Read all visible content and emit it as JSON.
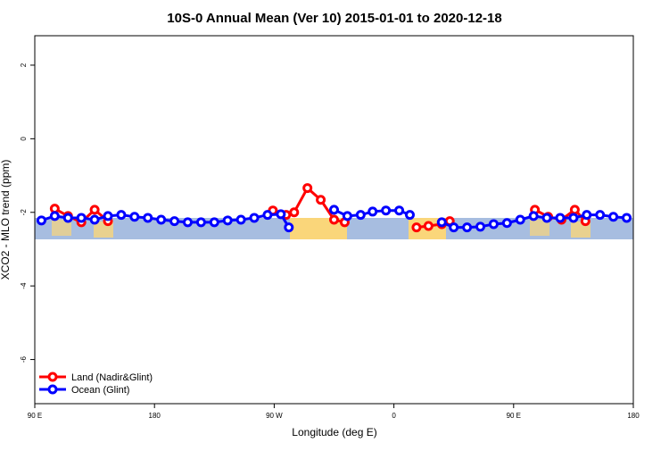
{
  "chart_data": {
    "type": "line",
    "title": "10S-0 Annual Mean (Ver 10)   2015-01-01 to 2020-12-18",
    "x_label": "Longitude (deg E)",
    "y_label": "XCO2 - MLO trend (ppm)",
    "xlim": [
      90,
      540
    ],
    "xticks": [
      {
        "value": 90,
        "label": "90 E"
      },
      {
        "value": 180,
        "label": "180"
      },
      {
        "value": 270,
        "label": "90 W"
      },
      {
        "value": 360,
        "label": "0"
      },
      {
        "value": 450,
        "label": "90 E"
      },
      {
        "value": 540,
        "label": "180"
      }
    ],
    "ylim": [
      -7.2,
      2.8
    ],
    "yticks": [
      -6,
      -4,
      -2,
      0,
      2
    ],
    "legend": "bottom-left",
    "series": [
      {
        "name": "Land (Nadir&Glint)",
        "color": "#ff0000",
        "x": [
          105,
          115,
          125,
          135,
          145,
          null,
          269,
          279,
          285,
          295,
          305,
          315,
          323,
          null,
          377,
          386,
          396,
          402,
          null,
          466,
          476,
          486,
          496,
          504
        ],
        "values": [
          -1.9,
          -2.1,
          -2.27,
          -1.93,
          -2.24,
          null,
          -1.95,
          -2.07,
          -2.0,
          -1.34,
          -1.66,
          -2.2,
          -2.27,
          null,
          -2.41,
          -2.37,
          -2.32,
          -2.24,
          null,
          -1.93,
          -2.12,
          -2.2,
          -1.93,
          -2.24
        ]
      },
      {
        "name": "Ocean (Glint)",
        "color": "#0000ff",
        "x": [
          95,
          105,
          115,
          125,
          135,
          145,
          155,
          165,
          175,
          185,
          195,
          205,
          215,
          225,
          235,
          245,
          255,
          265,
          275,
          281,
          null,
          315,
          325,
          335,
          344,
          354,
          364,
          372,
          null,
          396,
          405,
          415,
          425,
          435,
          445,
          455,
          465,
          475,
          485,
          495,
          505,
          515,
          525,
          535
        ],
        "values": [
          -2.22,
          -2.1,
          -2.15,
          -2.15,
          -2.2,
          -2.1,
          -2.07,
          -2.12,
          -2.15,
          -2.2,
          -2.24,
          -2.27,
          -2.27,
          -2.27,
          -2.22,
          -2.2,
          -2.15,
          -2.07,
          -2.05,
          -2.41,
          null,
          -1.93,
          -2.1,
          -2.07,
          -1.98,
          -1.95,
          -1.95,
          -2.07,
          null,
          -2.27,
          -2.41,
          -2.41,
          -2.39,
          -2.32,
          -2.29,
          -2.2,
          -2.1,
          -2.15,
          -2.15,
          -2.15,
          -2.07,
          -2.07,
          -2.12,
          -2.15
        ]
      }
    ]
  }
}
